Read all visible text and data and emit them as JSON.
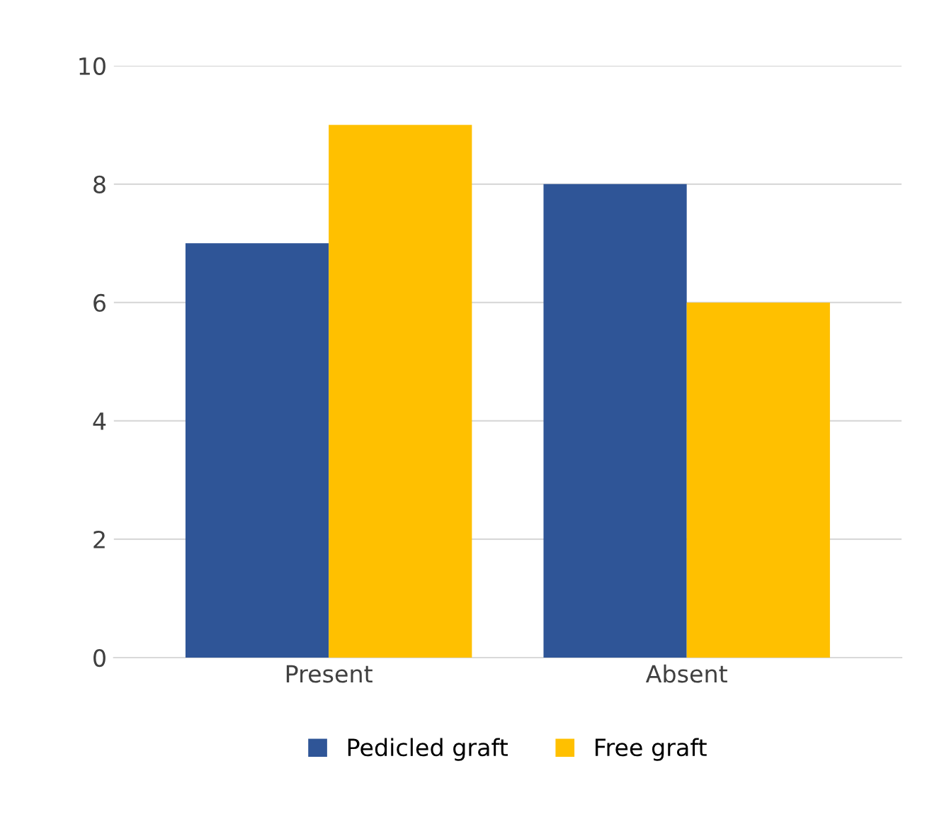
{
  "chart_data": {
    "type": "bar",
    "categories": [
      "Present",
      "Absent"
    ],
    "series": [
      {
        "name": "Pedicled graft",
        "color": "#2f5597",
        "values": [
          7,
          8
        ]
      },
      {
        "name": "Free graft",
        "color": "#ffc000",
        "values": [
          9,
          6
        ]
      }
    ],
    "ylim": [
      0,
      10
    ],
    "yticks": [
      0,
      2,
      4,
      6,
      8,
      10
    ],
    "grid": "y",
    "legend": "bottom"
  }
}
